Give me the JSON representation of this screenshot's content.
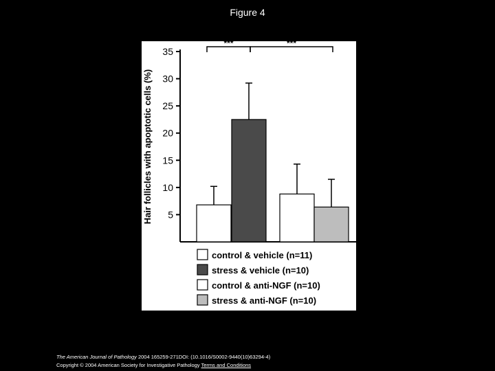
{
  "figure_title": "Figure 4",
  "footer": {
    "journal": "The American Journal of Pathology",
    "citation": " 2004 165259-271DOI: (10.1016/S0002-9440(10)63294-4)",
    "copyright": "Copyright © 2004 American Society for Investigative Pathology",
    "terms_link": "Terms and Conditions"
  },
  "chart_data": {
    "type": "bar",
    "title": "",
    "ylabel": "Hair follicles with apoptotic cells (%)",
    "xlabel": "",
    "ylim": [
      0,
      35
    ],
    "yticks": [
      5,
      10,
      15,
      20,
      25,
      30,
      35
    ],
    "series": [
      {
        "name": "control & vehicle (n=11)",
        "value": 6.8,
        "error": 10.2,
        "color": "#ffffff"
      },
      {
        "name": "stress & vehicle (n=10)",
        "value": 22.5,
        "error": 29.2,
        "color": "#4a4a4a"
      },
      {
        "name": "control & anti-NGF (n=10)",
        "value": 8.8,
        "error": 14.3,
        "color": "#ffffff"
      },
      {
        "name": "stress & anti-NGF (n=10)",
        "value": 6.4,
        "error": 11.5,
        "color": "#bdbdbd"
      }
    ],
    "significance": [
      {
        "label": "***",
        "between": [
          0,
          1
        ]
      },
      {
        "label": "***",
        "between": [
          1,
          3
        ]
      }
    ],
    "grid": false,
    "legend_position": "bottom"
  }
}
